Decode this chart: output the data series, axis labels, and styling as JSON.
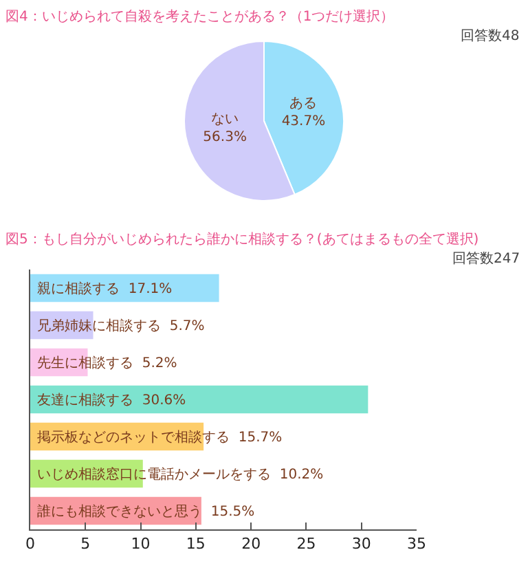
{
  "chart_data": [
    {
      "type": "pie",
      "title": "図4：いじめられて自殺を考えたことがある？（1つだけ選択）",
      "annotations": [
        "回答数48"
      ],
      "categories": [
        "ある",
        "ない"
      ],
      "values": [
        43.7,
        56.3
      ],
      "colors": [
        "#99e0fb",
        "#d0ccfa"
      ],
      "value_labels": [
        "43.7%",
        "56.3%"
      ]
    },
    {
      "type": "bar",
      "orientation": "horizontal",
      "title": "図5：もし自分がいじめられたら誰かに相談する？(あてはまるもの全て選択)",
      "annotations": [
        "回答数247"
      ],
      "categories": [
        "親に相談する",
        "兄弟姉妹に相談する",
        "先生に相談する",
        "友達に相談する",
        "掲示板などのネットで相談する",
        "いじめ相談窓口に電話かメールをする",
        "誰にも相談できないと思う"
      ],
      "values": [
        17.1,
        5.7,
        5.2,
        30.6,
        15.7,
        10.2,
        15.5
      ],
      "colors": [
        "#99e0fb",
        "#d0ccfa",
        "#fbc5ea",
        "#7de3cf",
        "#fdcd6a",
        "#b6ec78",
        "#f99aa0"
      ],
      "value_labels": [
        "17.1%",
        "5.7%",
        "5.2%",
        "30.6%",
        "15.7%",
        "10.2%",
        "15.5%"
      ],
      "xlim": [
        0,
        35
      ],
      "xticks": [
        0,
        5,
        10,
        15,
        20,
        25,
        30,
        35
      ],
      "tick_labels": "x"
    }
  ]
}
